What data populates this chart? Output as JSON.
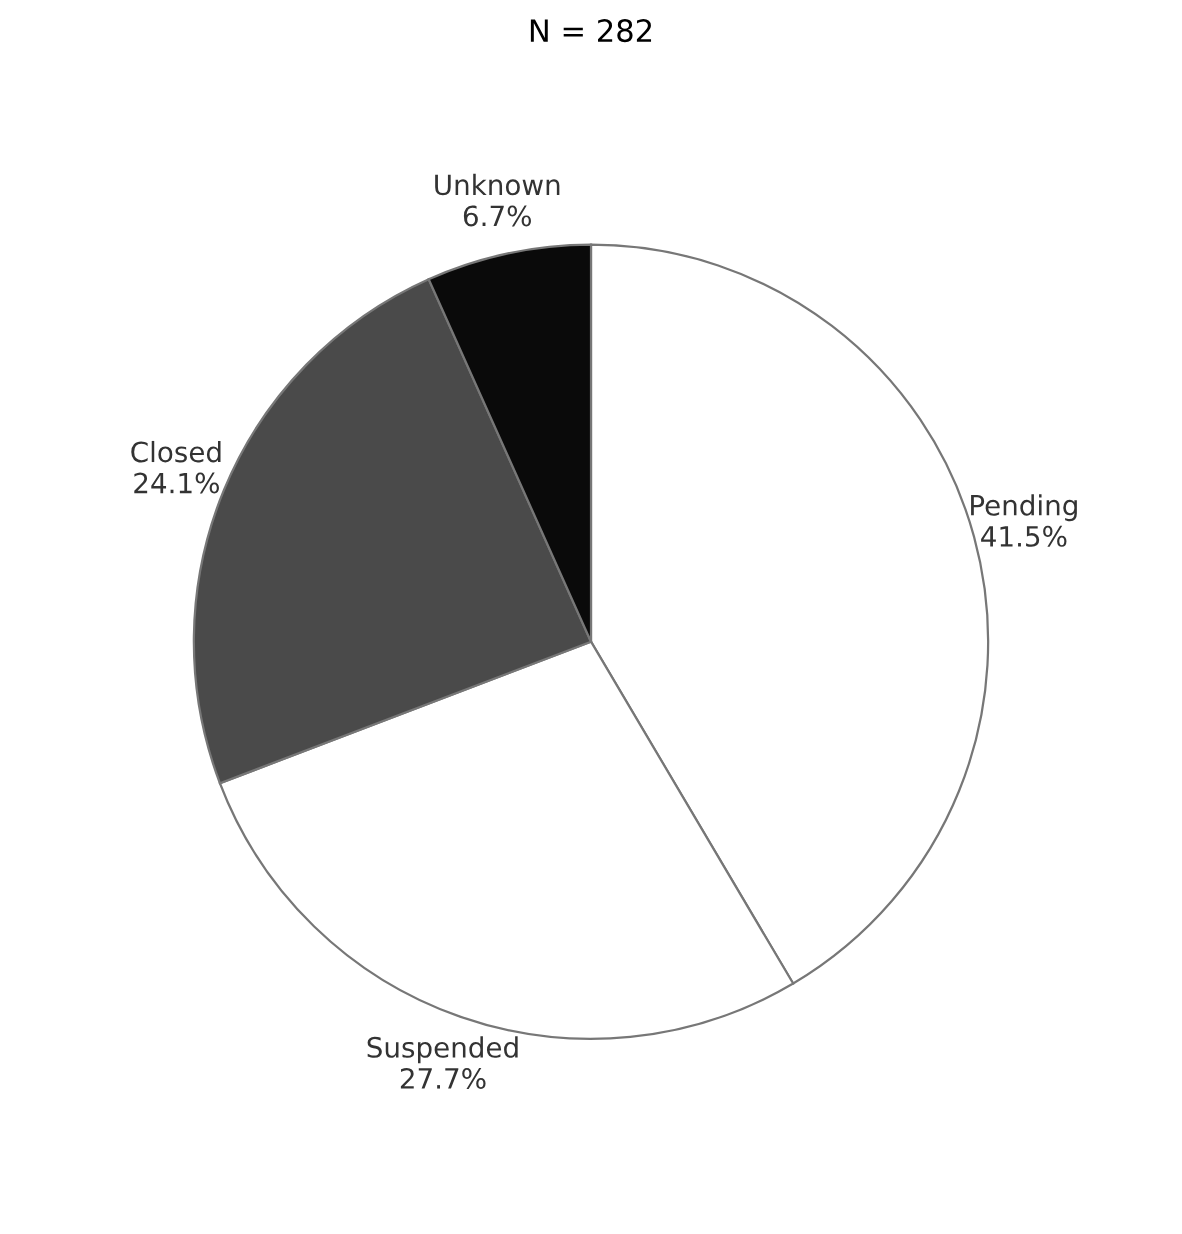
{
  "chart_data": {
    "type": "pie",
    "title": "N = 282",
    "categories": [
      "Pending",
      "Suspended",
      "Closed",
      "Unknown"
    ],
    "values": [
      41.5,
      27.7,
      24.1,
      6.7
    ],
    "value_labels": [
      "41.5%",
      "27.7%",
      "24.1%",
      "6.7%"
    ],
    "colors": [
      "#ffffff",
      "#ffffff",
      "#4a4a4a",
      "#0a0a0a"
    ],
    "legend": false
  }
}
